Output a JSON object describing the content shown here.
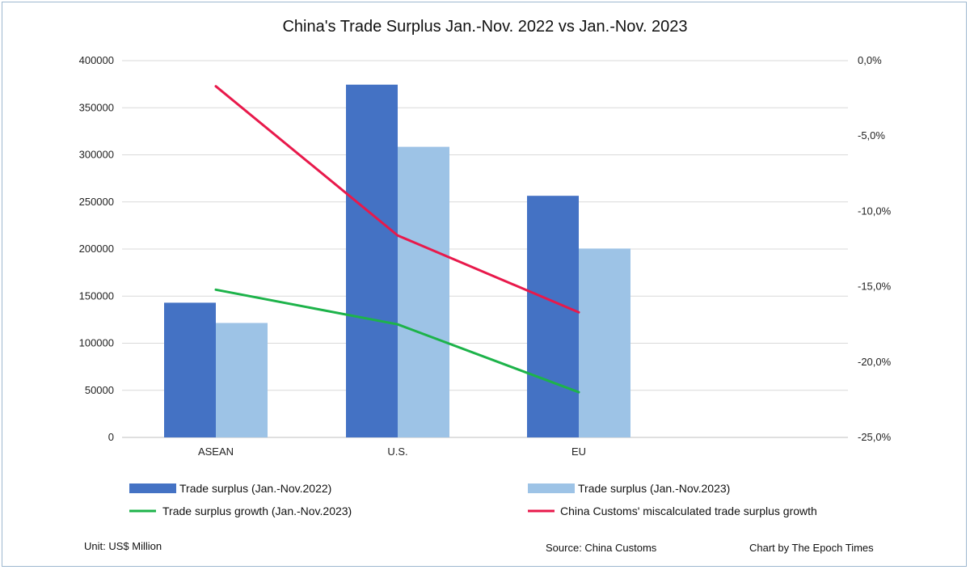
{
  "chart_data": {
    "type": "bar",
    "title": "China's Trade Surplus Jan.-Nov. 2022 vs Jan.-Nov. 2023",
    "categories": [
      "ASEAN",
      "U.S.",
      "EU"
    ],
    "series": [
      {
        "name": "Trade surplus (Jan.-Nov.2022)",
        "type": "bar",
        "axis": "left",
        "color": "#4472c4",
        "values": [
          143000,
          374500,
          256500
        ]
      },
      {
        "name": "Trade surplus (Jan.-Nov.2023)",
        "type": "bar",
        "axis": "left",
        "color": "#9dc3e6",
        "values": [
          121500,
          308500,
          200500
        ]
      },
      {
        "name": "Trade surplus growth (Jan.-Nov.2023)",
        "type": "line",
        "axis": "right",
        "color": "#1db34a",
        "values": [
          -15.2,
          -17.5,
          -22.0
        ]
      },
      {
        "name": "China Customs' miscalculated trade surplus growth",
        "type": "line",
        "axis": "right",
        "color": "#e8194b",
        "values": [
          -1.7,
          -11.6,
          -16.7
        ]
      }
    ],
    "y_left": {
      "range": [
        0,
        400000
      ],
      "ticks": [
        0,
        50000,
        100000,
        150000,
        200000,
        250000,
        300000,
        350000,
        400000
      ],
      "tick_labels": [
        "0",
        "50000",
        "100000",
        "150000",
        "200000",
        "250000",
        "300000",
        "350000",
        "400000"
      ]
    },
    "y_right": {
      "range": [
        -25,
        0
      ],
      "ticks": [
        -25,
        -20,
        -15,
        -10,
        -5,
        0
      ],
      "tick_labels": [
        "-25,0%",
        "-20,0%",
        "-15,0%",
        "-10,0%",
        "-5,0%",
        "0,0%"
      ]
    },
    "grid": true,
    "legend_position": "bottom",
    "footer": {
      "unit": "Unit: US$ Million",
      "source": "Source: China Customs",
      "credit": "Chart by The Epoch Times"
    }
  }
}
